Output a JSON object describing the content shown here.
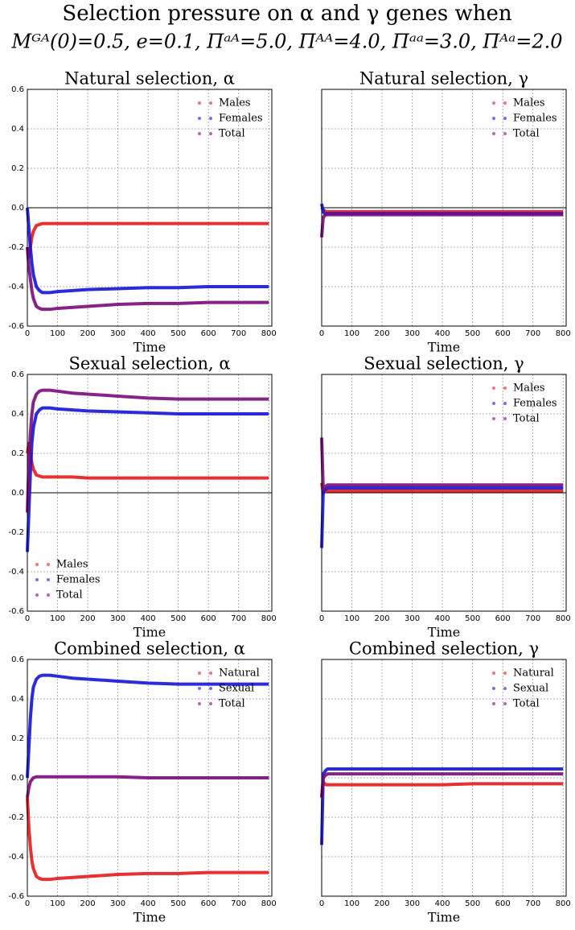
{
  "title": [
    "Selection pressure on α and γ genes when",
    "Mᴳᴬ(0)=0.5, e=0.1, Πᵃᴬ=5.0, Πᴬᴬ=4.0, Πᵃᵃ=3.0, Πᴬᵃ=2.0"
  ],
  "chart_data": [
    {
      "type": "line",
      "title": "Natural selection, α",
      "xlabel": "Time",
      "x": [
        0,
        5,
        10,
        15,
        20,
        30,
        40,
        50,
        75,
        100,
        150,
        200,
        300,
        400,
        500,
        600,
        700,
        800
      ],
      "series": [
        {
          "name": "Males",
          "color": "#e31a1c",
          "values": [
            -0.2,
            -0.25,
            -0.2,
            -0.15,
            -0.12,
            -0.09,
            -0.085,
            -0.08,
            -0.08,
            -0.08,
            -0.08,
            -0.08,
            -0.08,
            -0.08,
            -0.08,
            -0.08,
            -0.08,
            -0.08
          ]
        },
        {
          "name": "Females",
          "color": "#1414d8",
          "values": [
            0.0,
            -0.1,
            -0.2,
            -0.28,
            -0.34,
            -0.4,
            -0.42,
            -0.43,
            -0.43,
            -0.425,
            -0.42,
            -0.415,
            -0.41,
            -0.405,
            -0.405,
            -0.4,
            -0.4,
            -0.4
          ]
        },
        {
          "name": "Total",
          "color": "#7a0a7a",
          "values": [
            -0.2,
            -0.3,
            -0.36,
            -0.42,
            -0.46,
            -0.5,
            -0.51,
            -0.515,
            -0.515,
            -0.51,
            -0.505,
            -0.5,
            -0.49,
            -0.485,
            -0.485,
            -0.48,
            -0.48,
            -0.48
          ]
        }
      ],
      "xlim": [
        0,
        810
      ],
      "ylim": [
        -0.6,
        0.6
      ],
      "xticks": [
        0,
        100,
        200,
        300,
        400,
        500,
        600,
        700,
        800
      ],
      "yticks": [
        -0.6,
        -0.4,
        -0.2,
        {
          "value": 0,
          "label": "0.0"
        },
        0.2,
        0.4,
        0.6
      ],
      "show_yticklabels": true,
      "grid": true,
      "zero_line": true,
      "legend": "upper right"
    },
    {
      "type": "line",
      "title": "Natural selection, γ",
      "xlabel": "Time",
      "x": [
        0,
        5,
        10,
        15,
        20,
        30,
        40,
        50,
        75,
        100,
        150,
        200,
        300,
        400,
        500,
        600,
        700,
        800
      ],
      "series": [
        {
          "name": "Males",
          "color": "#e31a1c",
          "values": [
            0.0,
            -0.01,
            -0.015,
            -0.02,
            -0.02,
            -0.02,
            -0.02,
            -0.02,
            -0.02,
            -0.02,
            -0.02,
            -0.02,
            -0.02,
            -0.02,
            -0.02,
            -0.02,
            -0.02,
            -0.02
          ]
        },
        {
          "name": "Females",
          "color": "#1414d8",
          "values": [
            0.02,
            -0.02,
            -0.03,
            -0.03,
            -0.03,
            -0.03,
            -0.03,
            -0.03,
            -0.03,
            -0.03,
            -0.03,
            -0.03,
            -0.03,
            -0.03,
            -0.03,
            -0.03,
            -0.03,
            -0.03
          ]
        },
        {
          "name": "Total",
          "color": "#7a0a7a",
          "values": [
            -0.15,
            -0.05,
            -0.04,
            -0.035,
            -0.035,
            -0.035,
            -0.035,
            -0.035,
            -0.035,
            -0.035,
            -0.035,
            -0.035,
            -0.035,
            -0.035,
            -0.035,
            -0.035,
            -0.035,
            -0.035
          ]
        }
      ],
      "xlim": [
        0,
        810
      ],
      "ylim": [
        -0.6,
        0.6
      ],
      "xticks": [
        0,
        100,
        200,
        300,
        400,
        500,
        600,
        700,
        800
      ],
      "yticks": [
        -0.6,
        -0.4,
        -0.2,
        0,
        0.2,
        0.4,
        0.6
      ],
      "show_yticklabels": false,
      "grid": true,
      "zero_line": true,
      "legend": "upper right"
    },
    {
      "type": "line",
      "title": "Sexual selection, α",
      "xlabel": "Time",
      "x": [
        0,
        5,
        10,
        15,
        20,
        30,
        40,
        50,
        75,
        100,
        150,
        200,
        300,
        400,
        500,
        600,
        700,
        800
      ],
      "series": [
        {
          "name": "Males",
          "color": "#e31a1c",
          "values": [
            0.2,
            0.25,
            0.2,
            0.15,
            0.12,
            0.09,
            0.085,
            0.08,
            0.08,
            0.08,
            0.08,
            0.075,
            0.075,
            0.075,
            0.075,
            0.075,
            0.075,
            0.075
          ]
        },
        {
          "name": "Females",
          "color": "#1414d8",
          "values": [
            -0.3,
            -0.1,
            0.1,
            0.25,
            0.33,
            0.4,
            0.42,
            0.43,
            0.43,
            0.425,
            0.42,
            0.415,
            0.41,
            0.405,
            0.4,
            0.4,
            0.4,
            0.4
          ]
        },
        {
          "name": "Total",
          "color": "#7a0a7a",
          "values": [
            -0.1,
            0.15,
            0.3,
            0.4,
            0.46,
            0.5,
            0.515,
            0.52,
            0.52,
            0.515,
            0.505,
            0.5,
            0.49,
            0.48,
            0.475,
            0.475,
            0.475,
            0.475
          ]
        }
      ],
      "xlim": [
        0,
        810
      ],
      "ylim": [
        -0.6,
        0.6
      ],
      "xticks": [
        0,
        100,
        200,
        300,
        400,
        500,
        600,
        700,
        800
      ],
      "yticks": [
        -0.6,
        -0.4,
        -0.2,
        {
          "value": 0,
          "label": "0.0"
        },
        0.2,
        0.4,
        0.6
      ],
      "show_yticklabels": true,
      "grid": true,
      "zero_line": true,
      "legend": "lower left"
    },
    {
      "type": "line",
      "title": "Sexual selection, γ",
      "xlabel": "Time",
      "x": [
        0,
        5,
        10,
        15,
        20,
        30,
        40,
        50,
        75,
        100,
        150,
        200,
        300,
        400,
        500,
        600,
        700,
        800
      ],
      "series": [
        {
          "name": "Males",
          "color": "#e31a1c",
          "values": [
            0.05,
            0.0,
            0.005,
            0.01,
            0.01,
            0.01,
            0.01,
            0.01,
            0.01,
            0.01,
            0.01,
            0.01,
            0.01,
            0.01,
            0.01,
            0.01,
            0.01,
            0.01
          ]
        },
        {
          "name": "Females",
          "color": "#1414d8",
          "values": [
            -0.28,
            0.0,
            0.015,
            0.02,
            0.025,
            0.025,
            0.025,
            0.025,
            0.025,
            0.025,
            0.025,
            0.025,
            0.025,
            0.025,
            0.025,
            0.025,
            0.025,
            0.025
          ]
        },
        {
          "name": "Total",
          "color": "#7a0a7a",
          "values": [
            0.28,
            0.02,
            0.03,
            0.035,
            0.04,
            0.04,
            0.04,
            0.04,
            0.04,
            0.04,
            0.04,
            0.04,
            0.04,
            0.04,
            0.04,
            0.04,
            0.04,
            0.04
          ]
        }
      ],
      "xlim": [
        0,
        810
      ],
      "ylim": [
        -0.6,
        0.6
      ],
      "xticks": [
        0,
        100,
        200,
        300,
        400,
        500,
        600,
        700,
        800
      ],
      "yticks": [
        -0.6,
        -0.4,
        -0.2,
        0,
        0.2,
        0.4,
        0.6
      ],
      "show_yticklabels": false,
      "grid": true,
      "zero_line": true,
      "legend": "upper right"
    },
    {
      "type": "line",
      "title": "Combined selection, α",
      "xlabel": "Time",
      "x": [
        0,
        5,
        10,
        15,
        20,
        30,
        40,
        50,
        75,
        100,
        150,
        200,
        300,
        400,
        500,
        600,
        700,
        800
      ],
      "series": [
        {
          "name": "Natural",
          "color": "#e31a1c",
          "values": [
            -0.1,
            -0.25,
            -0.35,
            -0.42,
            -0.46,
            -0.5,
            -0.51,
            -0.515,
            -0.515,
            -0.51,
            -0.505,
            -0.5,
            -0.49,
            -0.485,
            -0.485,
            -0.48,
            -0.48,
            -0.48
          ]
        },
        {
          "name": "Sexual",
          "color": "#1414d8",
          "values": [
            0.0,
            0.15,
            0.3,
            0.4,
            0.46,
            0.5,
            0.515,
            0.52,
            0.52,
            0.515,
            0.505,
            0.5,
            0.49,
            0.48,
            0.475,
            0.475,
            0.475,
            0.475
          ]
        },
        {
          "name": "Total",
          "color": "#7a0a7a",
          "values": [
            -0.1,
            -0.05,
            -0.02,
            -0.01,
            0.0,
            0.005,
            0.005,
            0.005,
            0.005,
            0.005,
            0.005,
            0.005,
            0.005,
            0.0,
            0.0,
            0.0,
            0.0,
            0.0
          ]
        }
      ],
      "xlim": [
        0,
        810
      ],
      "ylim": [
        -0.6,
        0.6
      ],
      "xticks": [
        0,
        100,
        200,
        300,
        400,
        500,
        600,
        700,
        800
      ],
      "yticks": [
        -0.6,
        -0.4,
        -0.2,
        {
          "value": 0,
          "label": "0.0"
        },
        0.2,
        0.4,
        0.6
      ],
      "show_yticklabels": true,
      "grid": true,
      "zero_line": false,
      "legend": "upper right"
    },
    {
      "type": "line",
      "title": "Combined selection, γ",
      "xlabel": "Time",
      "x": [
        0,
        5,
        10,
        15,
        20,
        30,
        40,
        50,
        75,
        100,
        150,
        200,
        300,
        400,
        500,
        600,
        700,
        800
      ],
      "series": [
        {
          "name": "Natural",
          "color": "#e31a1c",
          "values": [
            -0.1,
            -0.02,
            -0.03,
            -0.035,
            -0.035,
            -0.035,
            -0.035,
            -0.035,
            -0.035,
            -0.035,
            -0.035,
            -0.035,
            -0.035,
            -0.035,
            -0.03,
            -0.03,
            -0.03,
            -0.03
          ]
        },
        {
          "name": "Sexual",
          "color": "#1414d8",
          "values": [
            -0.34,
            0.02,
            0.03,
            0.04,
            0.045,
            0.045,
            0.045,
            0.045,
            0.045,
            0.045,
            0.045,
            0.045,
            0.045,
            0.045,
            0.045,
            0.045,
            0.045,
            0.045
          ]
        },
        {
          "name": "Total",
          "color": "#7a0a7a",
          "values": [
            -0.1,
            0.0,
            0.01,
            0.015,
            0.02,
            0.02,
            0.02,
            0.02,
            0.02,
            0.02,
            0.02,
            0.02,
            0.02,
            0.02,
            0.02,
            0.02,
            0.02,
            0.02
          ]
        }
      ],
      "xlim": [
        0,
        810
      ],
      "ylim": [
        -0.6,
        0.6
      ],
      "xticks": [
        0,
        100,
        200,
        300,
        400,
        500,
        600,
        700,
        800
      ],
      "yticks": [
        -0.6,
        -0.4,
        -0.2,
        0,
        0.2,
        0.4,
        0.6
      ],
      "show_yticklabels": false,
      "grid": true,
      "zero_line": false,
      "legend": "upper right"
    }
  ]
}
